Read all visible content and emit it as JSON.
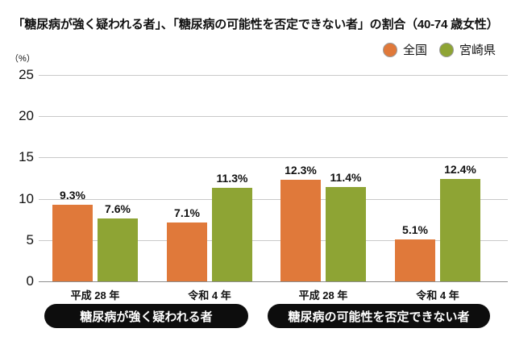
{
  "title": "「糖尿病が強く疑われる者」、「糖尿病の可能性を否定できない者」の割合（40-74 歳女性）",
  "unit_label": "（%）",
  "legend": {
    "items": [
      {
        "label": "全国",
        "color": "#e0793a"
      },
      {
        "label": "宮崎県",
        "color": "#8ea434"
      }
    ]
  },
  "section_labels": {
    "left": "糖尿病が強く疑われる者",
    "right": "糖尿病の可能性を否定できない者"
  },
  "chart_data": {
    "type": "bar",
    "title": "「糖尿病が強く疑われる者」、「糖尿病の可能性を否定できない者」の割合（40-74 歳女性）",
    "categories": [
      "平成 28 年",
      "令和 4 年",
      "平成 28 年",
      "令和 4 年"
    ],
    "category_sections": [
      "糖尿病が強く疑われる者",
      "糖尿病が強く疑われる者",
      "糖尿病の可能性を否定できない者",
      "糖尿病の可能性を否定できない者"
    ],
    "series": [
      {
        "name": "全国",
        "color": "#e0793a",
        "values": [
          9.3,
          7.1,
          12.3,
          5.1
        ],
        "labels": [
          "9.3%",
          "7.1%",
          "12.3%",
          "5.1%"
        ]
      },
      {
        "name": "宮崎県",
        "color": "#8ea434",
        "values": [
          7.6,
          11.3,
          11.4,
          12.4
        ],
        "labels": [
          "7.6%",
          "11.3%",
          "11.4%",
          "12.4%"
        ]
      }
    ],
    "xlabel": "",
    "ylabel": "（%）",
    "ylim": [
      0,
      25
    ],
    "yticks": [
      0,
      5,
      10,
      15,
      20,
      25
    ],
    "grid": true,
    "legend_position": "top-right"
  }
}
